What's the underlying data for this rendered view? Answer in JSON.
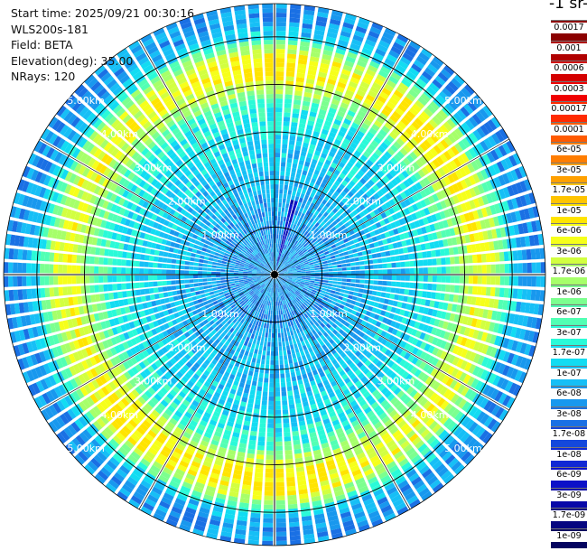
{
  "header": {
    "start_time": "Start time: 2025/09/21 00:30:16",
    "instrument": "WLS200s-181",
    "field": "Field: BETA",
    "elevation": "Elevation(deg): 35.00",
    "nrays": "NRays: 120"
  },
  "colorbar": {
    "unit_label": "-1 sr-",
    "labels": [
      "0.0017",
      "0.001",
      "0.0006",
      "0.0003",
      "0.00017",
      "0.0001",
      "6e-05",
      "3e-05",
      "1.7e-05",
      "1e-05",
      "6e-06",
      "3e-06",
      "1.7e-06",
      "1e-06",
      "6e-07",
      "3e-07",
      "1.7e-07",
      "1e-07",
      "6e-08",
      "3e-08",
      "1.7e-08",
      "1e-08",
      "6e-09",
      "3e-09",
      "1.7e-09",
      "1e-09"
    ],
    "colors": [
      "#8b0000",
      "#b00000",
      "#d40000",
      "#f00000",
      "#ff2a00",
      "#ff5a00",
      "#ff7d00",
      "#ffa000",
      "#ffc400",
      "#ffe400",
      "#f6ff1a",
      "#d2ff40",
      "#a6ff6a",
      "#7cff8f",
      "#52ffb4",
      "#2afad8",
      "#12dcf2",
      "#16bff6",
      "#1898ee",
      "#1a70e4",
      "#1448dc",
      "#1028d4",
      "#0c10c8",
      "#0808a8",
      "#060680",
      "#040460"
    ]
  },
  "chart_data": {
    "type": "polar-ppi",
    "title": "",
    "field": "BETA",
    "elevation_deg": 35.0,
    "nrays": 120,
    "max_range_km": 5.7,
    "rings_km": [
      1,
      2,
      3,
      4,
      5
    ],
    "ring_labels": [
      "1.00km",
      "2.00km",
      "3.00km",
      "4.00km",
      "5.00km"
    ],
    "radial_profile": [
      {
        "r_km": 0.0,
        "class": 18
      },
      {
        "r_km": 1.0,
        "class": 18
      },
      {
        "r_km": 2.0,
        "class": 17
      },
      {
        "r_km": 3.0,
        "class": 16
      },
      {
        "r_km": 3.5,
        "class": 15
      },
      {
        "r_km": 4.0,
        "class": 12
      },
      {
        "r_km": 4.25,
        "class": 10
      },
      {
        "r_km": 4.6,
        "class": 11
      },
      {
        "r_km": 5.0,
        "class": 16
      },
      {
        "r_km": 5.3,
        "class": 18
      },
      {
        "r_km": 5.7,
        "class": 18
      }
    ],
    "band_enhanced_azimuths_deg": [
      0,
      45,
      180,
      225
    ],
    "high_ray": {
      "azimuth_deg": 15,
      "max_range_km": 1.6,
      "class": 22
    }
  }
}
